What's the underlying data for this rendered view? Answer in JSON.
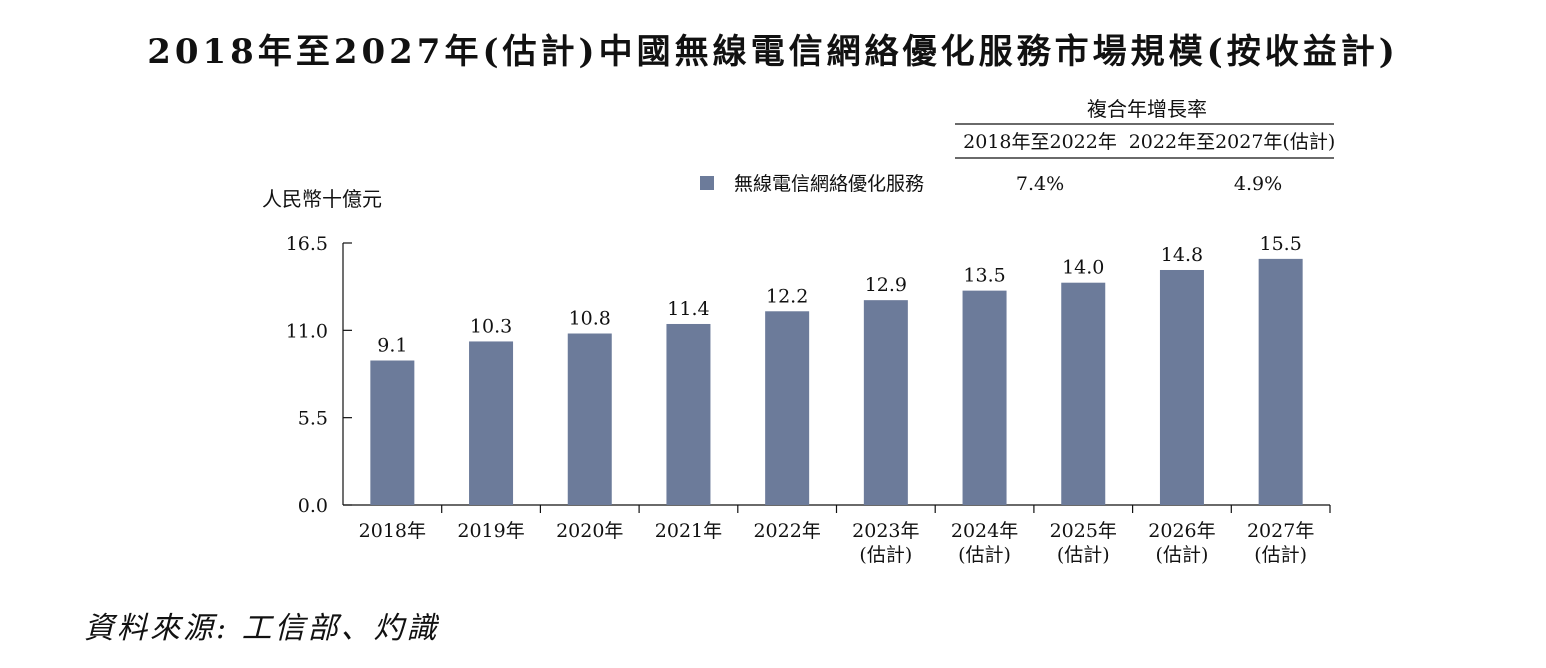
{
  "chart_data": {
    "type": "bar",
    "title": "2018年至2027年(估計)中國無線電信網絡優化服務市場規模(按收益計)",
    "ylabel": "人民幣十億元",
    "ylim": [
      0,
      16.5
    ],
    "yticks": [
      "0.0",
      "5.5",
      "11.0",
      "16.5"
    ],
    "categories": [
      [
        "2018年"
      ],
      [
        "2019年"
      ],
      [
        "2020年"
      ],
      [
        "2021年"
      ],
      [
        "2022年"
      ],
      [
        "2023年",
        "(估計)"
      ],
      [
        "2024年",
        "(估計)"
      ],
      [
        "2025年",
        "(估計)"
      ],
      [
        "2026年",
        "(估計)"
      ],
      [
        "2027年",
        "(估計)"
      ]
    ],
    "series": [
      {
        "name": "無線電信網絡優化服務",
        "color": "#6c7b9a",
        "values": [
          9.1,
          10.3,
          10.8,
          11.4,
          12.2,
          12.9,
          13.5,
          14.0,
          14.8,
          15.5
        ],
        "labels": [
          "9.1",
          "10.3",
          "10.8",
          "11.4",
          "12.2",
          "12.9",
          "13.5",
          "14.0",
          "14.8",
          "15.5"
        ]
      }
    ],
    "legend_position": "top",
    "grid": false
  },
  "cagr_table": {
    "header": "複合年增長率",
    "columns": [
      "2018年至2022年",
      "2022年至2027年(估計)"
    ],
    "row": {
      "name": "無線電信網絡優化服務",
      "values": [
        "7.4%",
        "4.9%"
      ]
    }
  },
  "source": "資料來源: 工信部、灼識"
}
